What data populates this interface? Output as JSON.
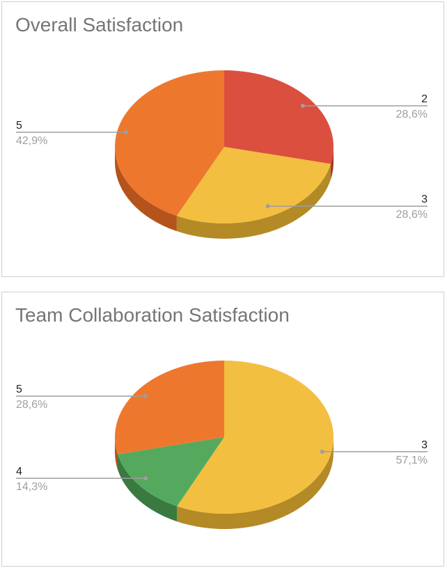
{
  "chart_data": [
    {
      "type": "pie",
      "title": "Overall Satisfaction",
      "style": "3d",
      "slices": [
        {
          "label": "2",
          "value": 28.6,
          "percent_label": "28,6%",
          "color": "#db4f3f",
          "side_color": "#a83528"
        },
        {
          "label": "3",
          "value": 28.6,
          "percent_label": "28,6%",
          "color": "#f3bf41",
          "side_color": "#b48a26"
        },
        {
          "label": "5",
          "value": 42.9,
          "percent_label": "42,9%",
          "color": "#ee772e",
          "side_color": "#b5531c"
        }
      ]
    },
    {
      "type": "pie",
      "title": "Team Collaboration Satisfaction",
      "style": "3d",
      "slices": [
        {
          "label": "3",
          "value": 57.1,
          "percent_label": "57,1%",
          "color": "#f3bf41",
          "side_color": "#b48a26"
        },
        {
          "label": "4",
          "value": 14.3,
          "percent_label": "14,3%",
          "color": "#55a95e",
          "side_color": "#3a7a41"
        },
        {
          "label": "5",
          "value": 28.6,
          "percent_label": "28,6%",
          "color": "#ee772e",
          "side_color": "#b5531c"
        }
      ]
    }
  ]
}
